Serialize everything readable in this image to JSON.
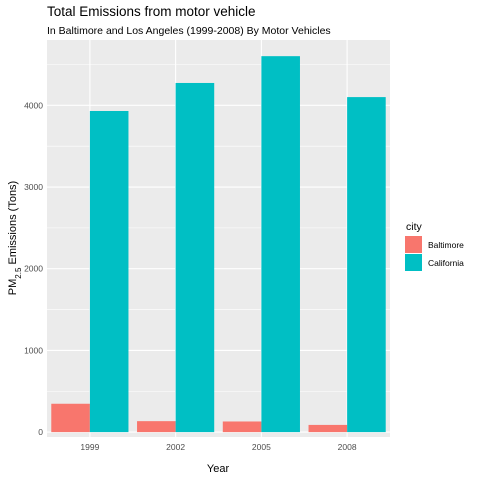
{
  "chart_data": {
    "type": "bar",
    "title": "Total Emissions from motor vehicle",
    "subtitle": "In Baltimore and Los Angeles (1999-2008) By Motor Vehicles",
    "xlabel": "Year",
    "ylabel": {
      "prefix": "PM",
      "subscript": "2.5",
      "suffix": " Emissions (Tons)"
    },
    "categories": [
      "1999",
      "2002",
      "2005",
      "2008"
    ],
    "series": [
      {
        "name": "Baltimore",
        "color": "#F8766D",
        "values": [
          347,
          134,
          130,
          88
        ]
      },
      {
        "name": "California",
        "color": "#00BFC4",
        "values": [
          3931,
          4274,
          4602,
          4101
        ]
      }
    ],
    "ylim": [
      -60,
      4800
    ],
    "yticks": [
      0,
      1000,
      2000,
      3000,
      4000
    ],
    "legend": {
      "title": "city",
      "position": "right"
    },
    "panel_background": "#EBEBEB",
    "grid": true
  }
}
